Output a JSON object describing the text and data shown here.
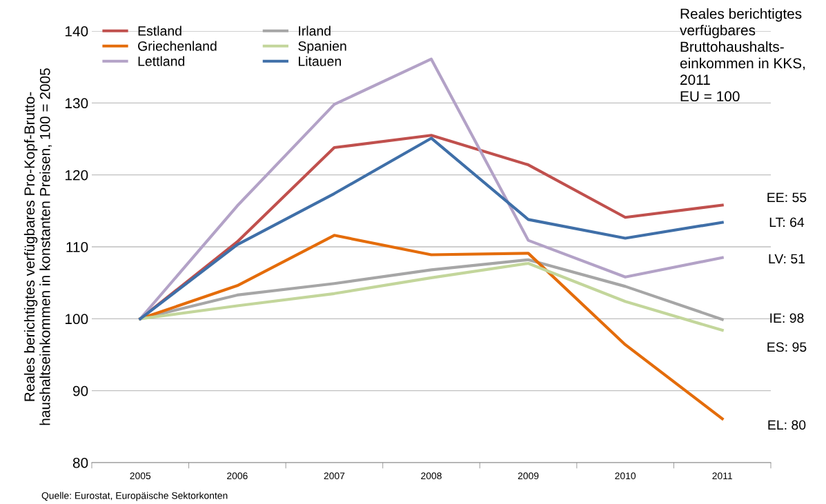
{
  "chart_data": {
    "type": "line",
    "ylabel": "Reales berichtigtes verfügbares Pro-Kopf-Brutto-\nhaushaltseinkommen in konstanten Preisen, 100 = 2005",
    "categories": [
      "2005",
      "2006",
      "2007",
      "2008",
      "2009",
      "2010",
      "2011"
    ],
    "series": [
      {
        "name": "Estland",
        "color": "#c0504d",
        "values": [
          100,
          110.7,
          123.8,
          125.5,
          121.4,
          114.1,
          115.8
        ]
      },
      {
        "name": "Irland",
        "color": "#a6a6a6",
        "values": [
          100,
          103.3,
          104.9,
          106.8,
          108.2,
          104.5,
          99.9
        ]
      },
      {
        "name": "Griechenland",
        "color": "#e46c0a",
        "values": [
          100,
          104.6,
          111.6,
          108.9,
          109.1,
          96.4,
          86.1
        ]
      },
      {
        "name": "Spanien",
        "color": "#c3d69b",
        "values": [
          100,
          101.8,
          103.5,
          105.7,
          107.7,
          102.4,
          98.4
        ]
      },
      {
        "name": "Lettland",
        "color": "#b3a2c7",
        "values": [
          100,
          115.7,
          129.8,
          136.1,
          110.9,
          105.8,
          108.5
        ]
      },
      {
        "name": "Litauen",
        "color": "#3f6fa8",
        "values": [
          100,
          110.3,
          117.4,
          125.1,
          113.8,
          111.2,
          113.4
        ]
      }
    ],
    "ylim": [
      80,
      140
    ],
    "yticks": [
      80,
      90,
      100,
      110,
      120,
      130,
      140
    ],
    "grid": "y",
    "legend": "top left",
    "marker": "none",
    "line_style": "solid",
    "annotations": [
      "Reales berichtigtes\nverfügbares\nBruttohaushalts-\neinkommen in KKS,\n2011\nEU = 100",
      "Quelle: Eurostat, Europäische Sektorkonten",
      "EE: 55",
      "LT: 64",
      "LV: 51",
      "IE: 98",
      "ES: 95",
      "EL: 80"
    ]
  }
}
